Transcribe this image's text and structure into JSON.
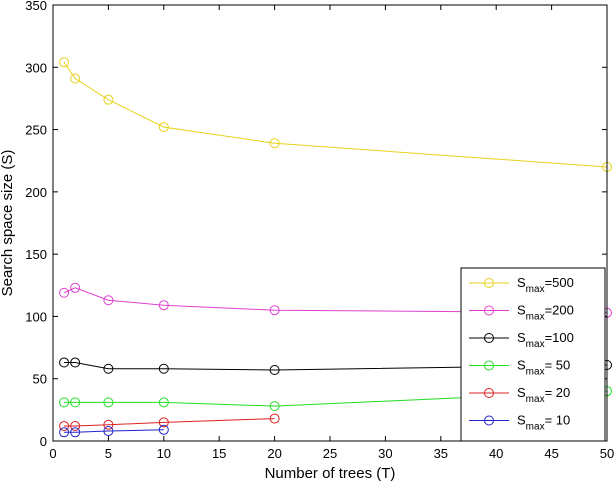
{
  "chart_data": {
    "type": "line",
    "xlabel": "Number of trees (T)",
    "ylabel": "Search space size (S)",
    "xlim": [
      0,
      50
    ],
    "ylim": [
      0,
      350
    ],
    "xticks": [
      "0",
      "5",
      "10",
      "15",
      "20",
      "25",
      "30",
      "35",
      "40",
      "45",
      "50"
    ],
    "yticks": [
      "0",
      "50",
      "100",
      "150",
      "200",
      "250",
      "300",
      "350"
    ],
    "grid": false,
    "legend_position": "bottom-right",
    "series": [
      {
        "name": "S",
        "sub": "max",
        "suffix": "=500",
        "color": "#e6d21a",
        "x": [
          1,
          2,
          5,
          10,
          20,
          50
        ],
        "y": [
          304,
          291,
          274,
          252,
          239,
          220
        ]
      },
      {
        "name": "S",
        "sub": "max",
        "suffix": "=200",
        "color": "#e040d0",
        "x": [
          1,
          2,
          5,
          10,
          20,
          50
        ],
        "y": [
          119,
          123,
          113,
          109,
          105,
          103
        ]
      },
      {
        "name": "S",
        "sub": "max",
        "suffix": "=100",
        "color": "#000000",
        "x": [
          1,
          2,
          5,
          10,
          20,
          50
        ],
        "y": [
          63,
          63,
          58,
          58,
          57,
          61
        ]
      },
      {
        "name": "S",
        "sub": "max",
        "suffix": "= 50",
        "color": "#22dd22",
        "x": [
          1,
          2,
          5,
          10,
          20,
          50
        ],
        "y": [
          31,
          31,
          31,
          31,
          28,
          40
        ]
      },
      {
        "name": "S",
        "sub": "max",
        "suffix": "= 20",
        "color": "#dd2020",
        "x": [
          1,
          2,
          5,
          10,
          20
        ],
        "y": [
          12,
          12,
          13,
          15,
          18
        ]
      },
      {
        "name": "S",
        "sub": "max",
        "suffix": "= 10",
        "color": "#2222cc",
        "x": [
          1,
          2,
          5,
          10
        ],
        "y": [
          7,
          7,
          8,
          9
        ]
      }
    ]
  }
}
